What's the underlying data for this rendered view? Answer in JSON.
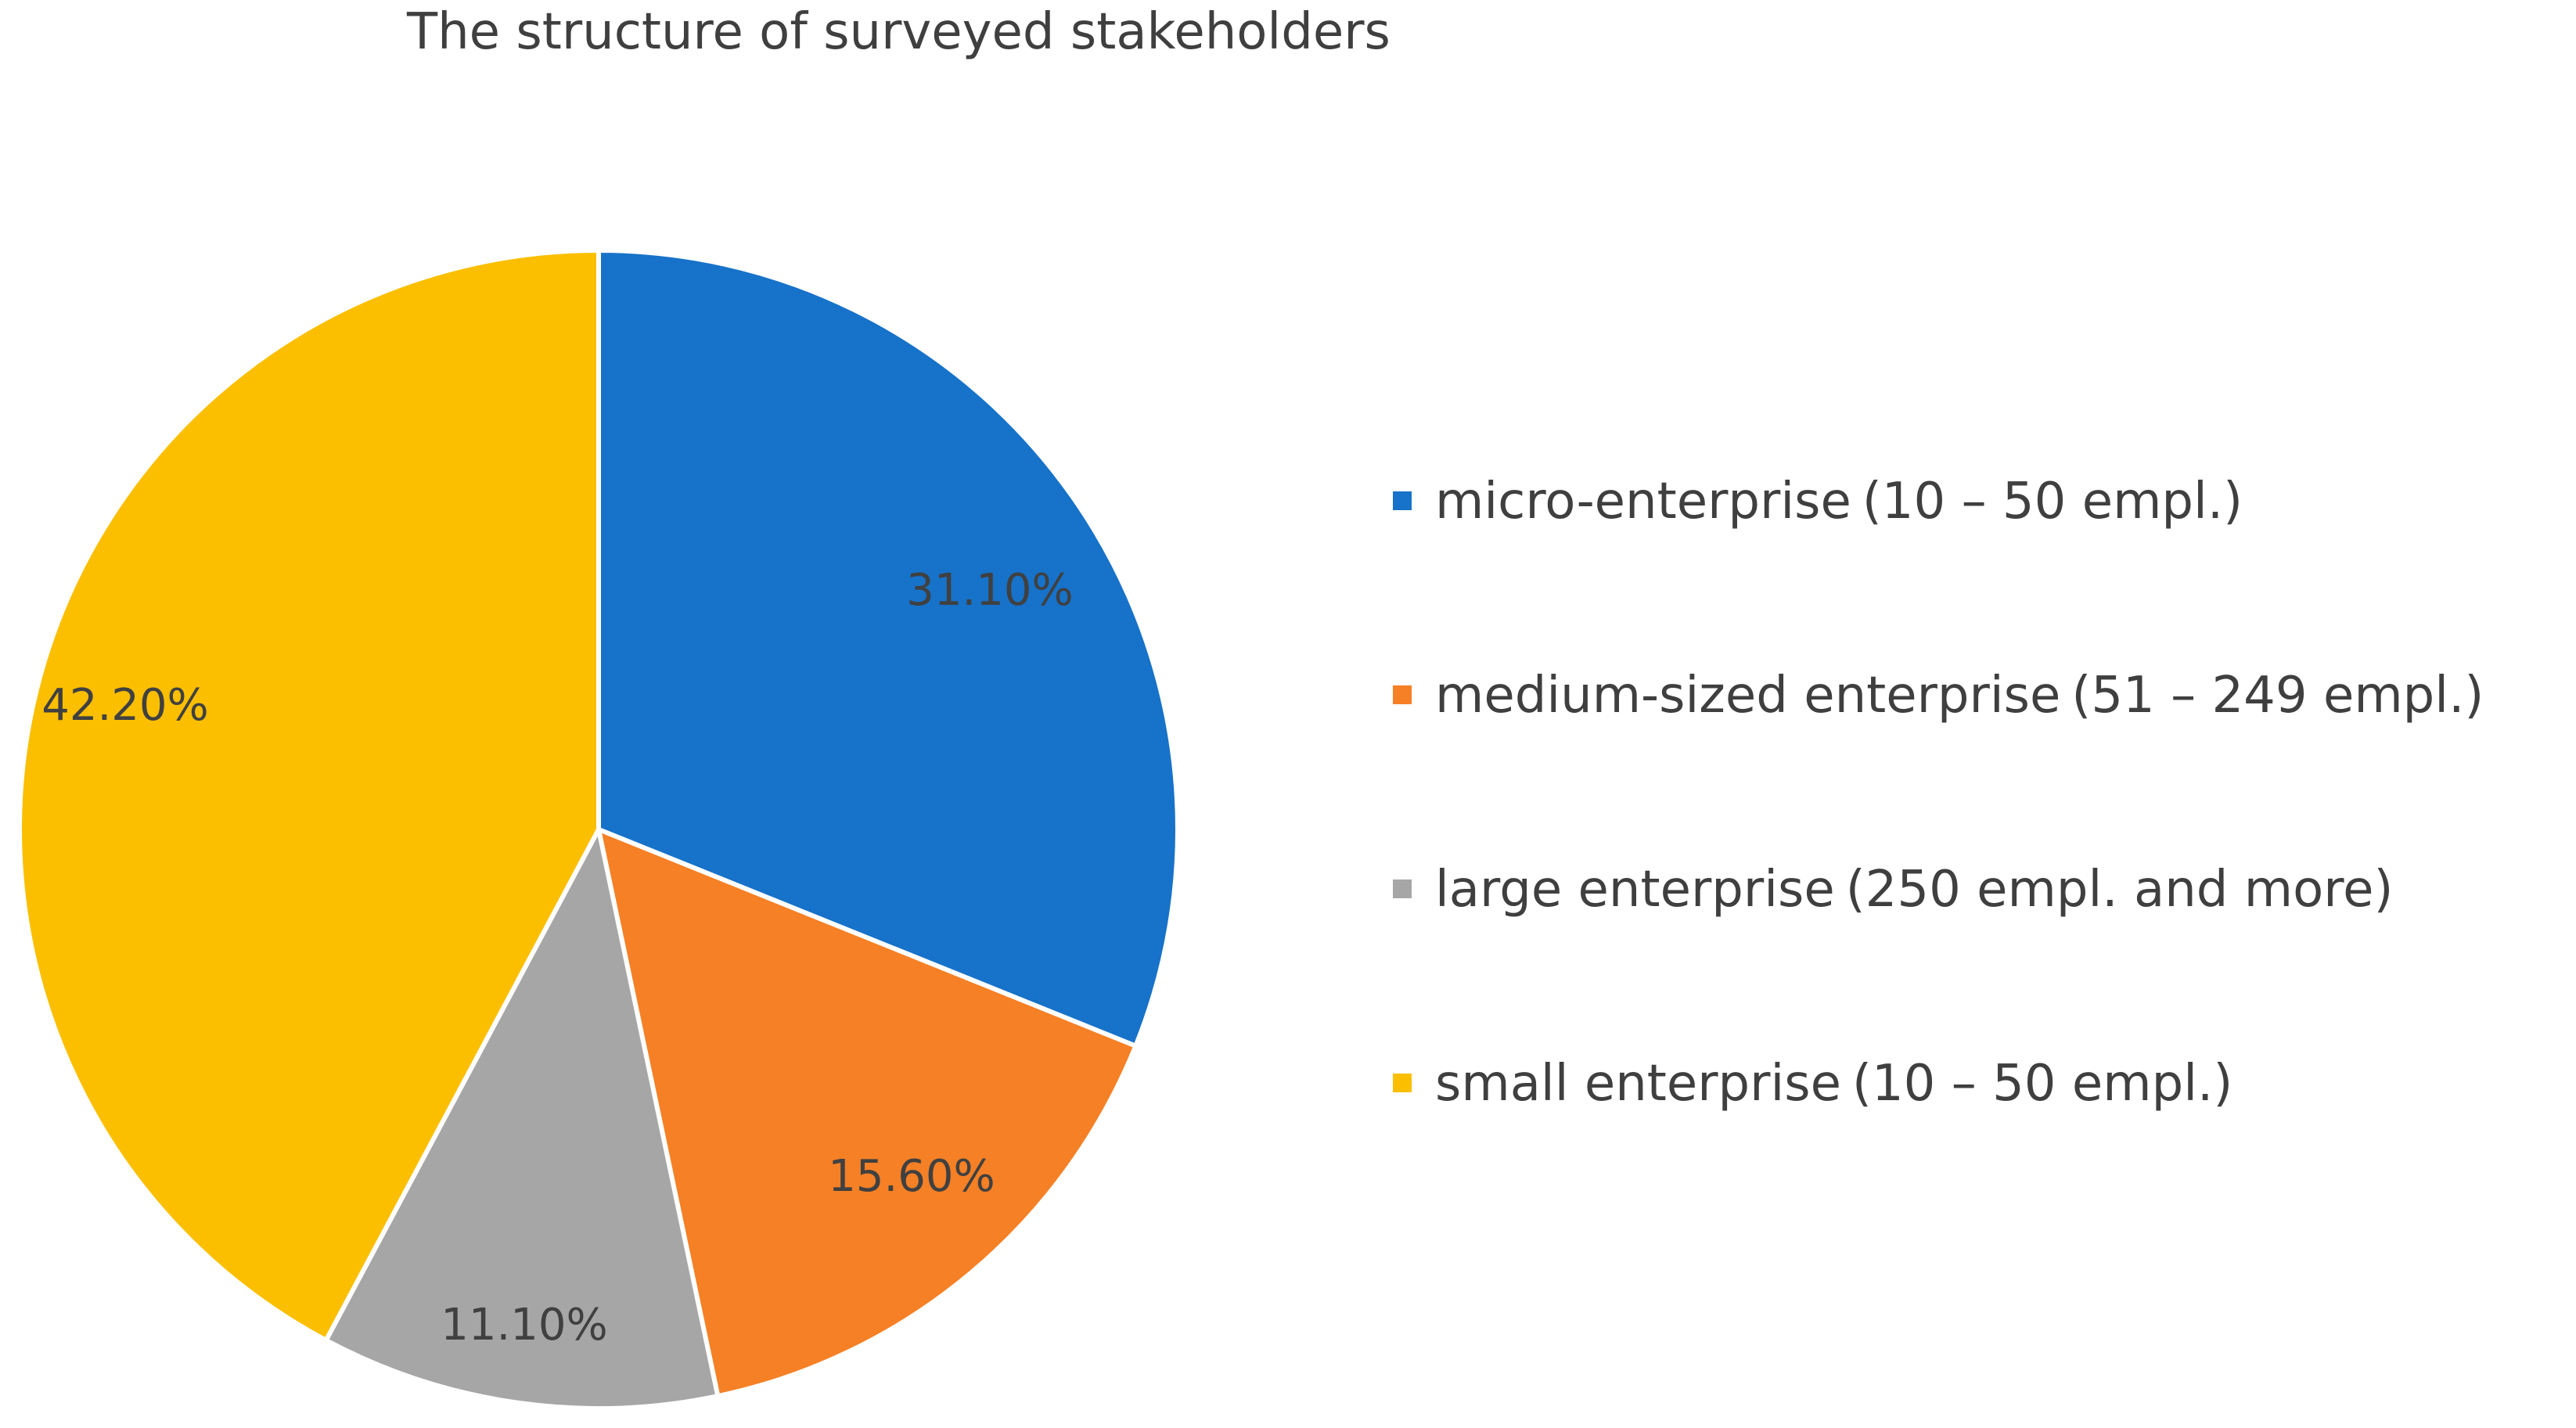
{
  "chart_data": {
    "type": "pie",
    "title": "The structure of surveyed stakeholders",
    "slices": [
      {
        "name": "micro-enterprise (10 – 50 empl.)",
        "legend_main": "micro-enterprise",
        "legend_detail": "(10 – 50 empl.)",
        "value": 31.1,
        "label": "31.10%",
        "color": "#1772c9"
      },
      {
        "name": "medium-sized enterprise (51 – 249 empl.)",
        "legend_main": "medium-sized enterprise",
        "legend_detail": "(51 – 249 empl.)",
        "value": 15.6,
        "label": "15.60%",
        "color": "#f58025"
      },
      {
        "name": "large enterprise (250 empl. and more)",
        "legend_main": "large enterprise",
        "legend_detail": "(250 empl. and more)",
        "value": 11.1,
        "label": "11.10%",
        "color": "#a6a6a6"
      },
      {
        "name": "small enterprise (10 – 50 empl.)",
        "legend_main": "small enterprise",
        "legend_detail": "(10 – 50 empl.)",
        "value": 42.2,
        "label": "42.20%",
        "color": "#fbbf00"
      }
    ],
    "start_angle": "12 o'clock",
    "direction": "clockwise",
    "legend_position": "right"
  }
}
